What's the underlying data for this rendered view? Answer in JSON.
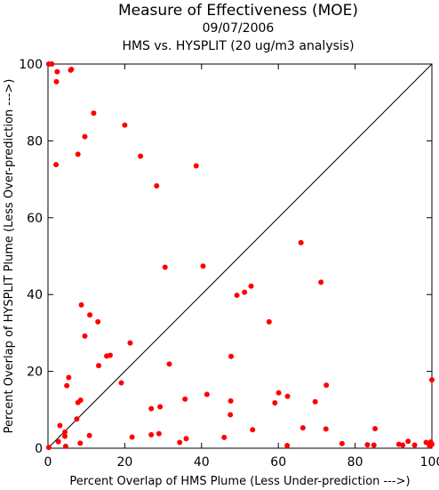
{
  "chart_data": {
    "type": "scatter",
    "title": "Measure of Effectiveness (MOE)",
    "subtitle": "09/07/2006",
    "subtitle2": "HMS vs. HYSPLIT  (20 ug/m3 analysis)",
    "xlabel": "Percent Overlap of HMS Plume (Less Under-prediction --->)",
    "ylabel": "Percent Overlap of HYSPLIT Plume (Less Over-prediction --->)",
    "xlim": [
      0,
      100
    ],
    "ylim": [
      0,
      100
    ],
    "x_ticks": [
      0,
      20,
      40,
      60,
      80,
      100
    ],
    "y_ticks": [
      0,
      20,
      40,
      60,
      80,
      100
    ],
    "grid": false,
    "diagonal_line": true,
    "point_color": "#ff0000",
    "points": [
      [
        0.2,
        100
      ],
      [
        1.0,
        100
      ],
      [
        2.4,
        98
      ],
      [
        5.9,
        98.4
      ],
      [
        6.1,
        98.6
      ],
      [
        2.2,
        95.4
      ],
      [
        11.9,
        87.2
      ],
      [
        20.0,
        84.1
      ],
      [
        9.6,
        81.1
      ],
      [
        7.8,
        76.5
      ],
      [
        24.1,
        76.0
      ],
      [
        2.1,
        73.8
      ],
      [
        38.6,
        73.5
      ],
      [
        28.3,
        68.3
      ],
      [
        65.9,
        53.5
      ],
      [
        40.4,
        47.4
      ],
      [
        30.5,
        47.1
      ],
      [
        71.1,
        43.2
      ],
      [
        52.9,
        42.2
      ],
      [
        51.2,
        40.6
      ],
      [
        49.2,
        39.8
      ],
      [
        8.7,
        37.3
      ],
      [
        10.9,
        34.7
      ],
      [
        13.0,
        32.9
      ],
      [
        57.6,
        32.9
      ],
      [
        9.6,
        29.2
      ],
      [
        21.4,
        27.4
      ],
      [
        15.3,
        24.0
      ],
      [
        16.2,
        24.2
      ],
      [
        47.7,
        23.9
      ],
      [
        31.6,
        21.9
      ],
      [
        13.2,
        21.5
      ],
      [
        5.4,
        18.4
      ],
      [
        100,
        17.8
      ],
      [
        19.1,
        17.0
      ],
      [
        4.9,
        16.3
      ],
      [
        72.5,
        16.4
      ],
      [
        60.1,
        14.4
      ],
      [
        41.4,
        14.0
      ],
      [
        62.4,
        13.5
      ],
      [
        35.7,
        12.8
      ],
      [
        8.5,
        12.5
      ],
      [
        47.6,
        12.3
      ],
      [
        7.8,
        11.9
      ],
      [
        59.1,
        11.8
      ],
      [
        69.6,
        12.1
      ],
      [
        29.2,
        10.8
      ],
      [
        26.9,
        10.3
      ],
      [
        47.5,
        8.7
      ],
      [
        7.5,
        7.6
      ],
      [
        3.1,
        5.9
      ],
      [
        66.4,
        5.3
      ],
      [
        72.4,
        5.0
      ],
      [
        53.3,
        4.8
      ],
      [
        85.2,
        5.1
      ],
      [
        4.4,
        4.2
      ],
      [
        28.9,
        3.8
      ],
      [
        26.9,
        3.5
      ],
      [
        4.4,
        3.1
      ],
      [
        10.8,
        3.3
      ],
      [
        21.9,
        2.9
      ],
      [
        45.9,
        2.8
      ],
      [
        36.0,
        2.5
      ],
      [
        93.8,
        1.8
      ],
      [
        2.7,
        1.7
      ],
      [
        34.3,
        1.5
      ],
      [
        8.4,
        1.3
      ],
      [
        98.5,
        1.5
      ],
      [
        99.7,
        1.6
      ],
      [
        76.6,
        1.2
      ],
      [
        91.4,
        1.0
      ],
      [
        92.4,
        0.8
      ],
      [
        83.2,
        0.9
      ],
      [
        84.9,
        0.8
      ],
      [
        95.5,
        0.8
      ],
      [
        62.3,
        0.7
      ],
      [
        100,
        1.0
      ],
      [
        4.6,
        0.5
      ],
      [
        99.4,
        0.6
      ],
      [
        0.2,
        0.2
      ]
    ]
  }
}
